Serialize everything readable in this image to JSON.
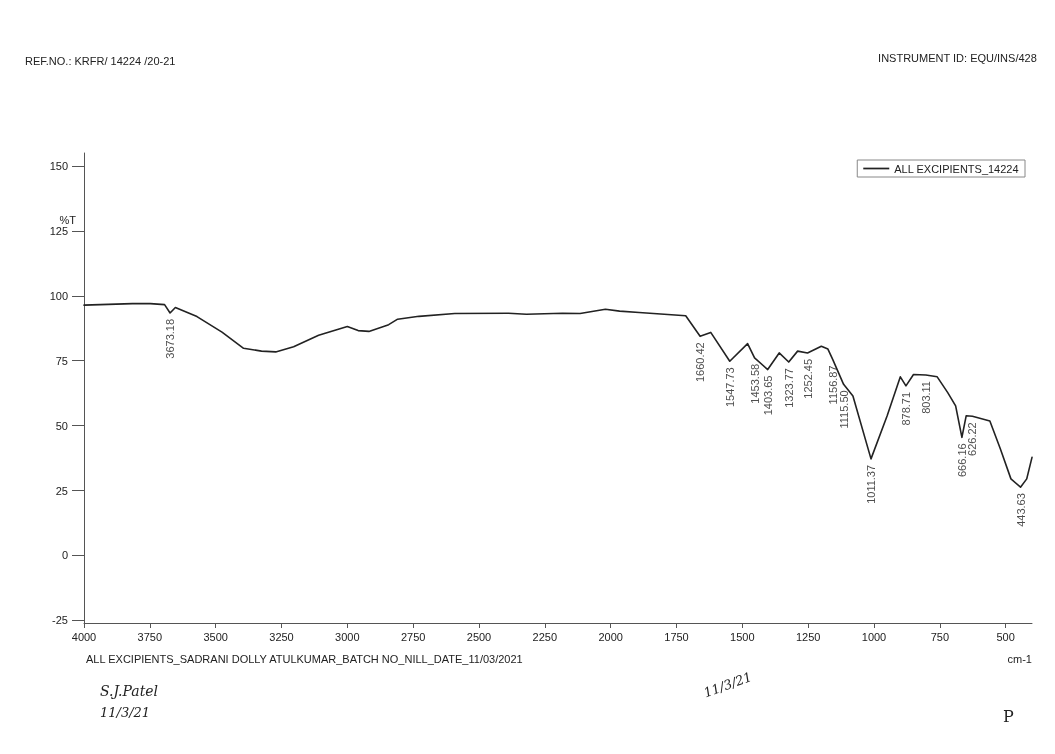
{
  "chart_data": {
    "type": "line",
    "subtitle": "REF.NO.: KRFR/ 14224 /20-21",
    "xlabel": "cm-1",
    "ylabel": "%T",
    "legend": "top right",
    "marker": "none",
    "line_style": "solid",
    "grid": false,
    "xlim": [
      4000,
      400
    ],
    "xticks": [
      4000,
      3750,
      3500,
      3250,
      3000,
      2750,
      2500,
      2250,
      2000,
      1750,
      1500,
      1250,
      1000,
      750,
      500
    ],
    "ylim": [
      -26,
      155
    ],
    "yticks": [
      -25,
      0,
      25,
      50,
      75,
      100,
      125,
      150
    ],
    "series": [
      {
        "name": "ALL EXCIPIENTS_14224",
        "color": "#222222",
        "x": [
          4000,
          3816,
          3748,
          3694,
          3673.18,
          3653,
          3571,
          3476,
          3394,
          3326,
          3272,
          3204,
          3109,
          3000,
          2959,
          2918,
          2843,
          2809,
          2728,
          2592,
          2388,
          2320,
          2183,
          2116,
          2020,
          1966,
          1892,
          1715,
          1660.42,
          1620,
          1547.73,
          1480,
          1453.58,
          1403.65,
          1360,
          1323.77,
          1290,
          1252.45,
          1200,
          1175,
          1156.87,
          1115.5,
          1080,
          1011.37,
          950,
          900,
          878.71,
          850,
          803.11,
          760,
          720,
          690,
          666.16,
          650,
          626.22,
          560,
          520,
          480,
          443.63,
          420,
          400
        ],
        "values": [
          96.4,
          97,
          97,
          96.6,
          93.4,
          95.5,
          92,
          86,
          79.8,
          78.7,
          78.4,
          80.4,
          84.8,
          88.2,
          86.6,
          86.3,
          88.9,
          91,
          92.1,
          93.2,
          93.3,
          92.9,
          93.3,
          93.2,
          94.8,
          94.1,
          93.6,
          92.3,
          84.4,
          85.9,
          74.8,
          81.6,
          76.1,
          71.6,
          78,
          74.5,
          78.7,
          78,
          80.6,
          79.5,
          75.5,
          65.9,
          61.4,
          37.2,
          53.8,
          68.8,
          65.3,
          69.7,
          69.5,
          68.8,
          62.7,
          57.6,
          45.5,
          53.8,
          53.6,
          51.8,
          41,
          29.5,
          26.3,
          29.5,
          37.8
        ]
      }
    ],
    "annotations": [
      {
        "text": "3673.18",
        "x": 3673.18,
        "y": 93.4
      },
      {
        "text": "1660.42",
        "x": 1660.42,
        "y": 84.4
      },
      {
        "text": "1547.73",
        "x": 1547.73,
        "y": 74.8
      },
      {
        "text": "1453.58",
        "x": 1453.58,
        "y": 76.1
      },
      {
        "text": "1403.65",
        "x": 1403.65,
        "y": 71.6
      },
      {
        "text": "1323.77",
        "x": 1323.77,
        "y": 74.5
      },
      {
        "text": "1252.45",
        "x": 1252.45,
        "y": 78
      },
      {
        "text": "1156.87",
        "x": 1156.87,
        "y": 75.5
      },
      {
        "text": "1115.50",
        "x": 1115.5,
        "y": 65.9
      },
      {
        "text": "1011.37",
        "x": 1011.37,
        "y": 37.2
      },
      {
        "text": "878.71",
        "x": 878.71,
        "y": 65.3
      },
      {
        "text": "803.11",
        "x": 803.11,
        "y": 69.5
      },
      {
        "text": "666.16",
        "x": 666.16,
        "y": 45.5
      },
      {
        "text": "626.22",
        "x": 626.22,
        "y": 53.6
      },
      {
        "text": "443.63",
        "x": 443.63,
        "y": 26.3
      },
      "INSTRUMENT ID: EQU/INS/428",
      "ALL EXCIPIENTS_SADRANI DOLLY ATULKUMAR_BATCH NO_NILL_DATE_11/03/2021",
      "S.J.Patel",
      "11/3/21",
      "11/3/21",
      "P"
    ]
  }
}
